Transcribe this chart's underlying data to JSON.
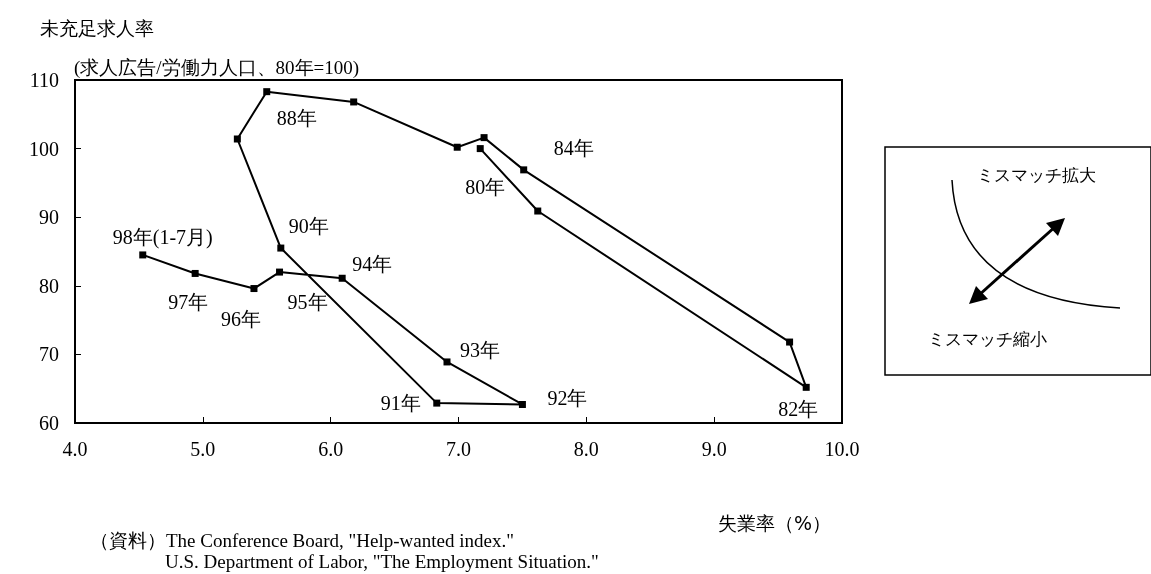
{
  "chart_data": {
    "type": "line",
    "ylabel": "未充足求人率",
    "subtitle": "(求人広告/労働力人口、80年=100)",
    "xlabel": "失業率（%）",
    "xlim": [
      4,
      10
    ],
    "xticks": [
      {
        "value": 4,
        "label": "4.0"
      },
      {
        "value": 5,
        "label": "5.0"
      },
      {
        "value": 6,
        "label": "6.0"
      },
      {
        "value": 7,
        "label": "7.0"
      },
      {
        "value": 8,
        "label": "8.0"
      },
      {
        "value": 9,
        "label": "9.0"
      },
      {
        "value": 10,
        "label": "10.0"
      }
    ],
    "ylim": [
      60,
      110
    ],
    "yticks": [
      60,
      70,
      80,
      90,
      100,
      110
    ],
    "grid": false,
    "marker": "square",
    "line_style": "solid",
    "series": [
      {
        "color": "#000000",
        "x": [
          7.17,
          7.62,
          9.72,
          9.59,
          7.51,
          7.2,
          6.99,
          6.18,
          5.5,
          5.27,
          5.61,
          6.83,
          7.5,
          6.91,
          6.09,
          5.6,
          5.4,
          4.94,
          4.53
        ],
        "values": [
          100,
          90.9,
          65.2,
          71.8,
          96.9,
          101.6,
          100.2,
          106.8,
          108.3,
          101.4,
          85.5,
          62.9,
          62.7,
          68.9,
          81.1,
          82,
          79.6,
          81.8,
          84.5
        ]
      }
    ],
    "annotations": [
      "ミスマッチ拡大",
      "ミスマッチ縮小",
      "（資料）The Conference Board, \"Help-wanted index.\"",
      "U.S. Department of Labor, \"The Employment Situation.\"",
      {
        "text": "80年",
        "x": 7.17,
        "y": 100
      },
      {
        "text": "82年",
        "x": 9.72,
        "y": 65.2
      },
      {
        "text": "84年",
        "x": 7.51,
        "y": 96.9
      },
      {
        "text": "88年",
        "x": 5.5,
        "y": 108.3
      },
      {
        "text": "90年",
        "x": 5.61,
        "y": 85.5
      },
      {
        "text": "91年",
        "x": 6.83,
        "y": 62.9
      },
      {
        "text": "92年",
        "x": 7.5,
        "y": 62.7
      },
      {
        "text": "93年",
        "x": 6.91,
        "y": 68.9
      },
      {
        "text": "94年",
        "x": 6.09,
        "y": 81.1
      },
      {
        "text": "95年",
        "x": 5.6,
        "y": 82
      },
      {
        "text": "96年",
        "x": 5.4,
        "y": 79.6
      },
      {
        "text": "97年",
        "x": 4.94,
        "y": 81.8
      },
      {
        "text": "98年(1-7月)",
        "x": 4.53,
        "y": 84.5
      }
    ]
  }
}
